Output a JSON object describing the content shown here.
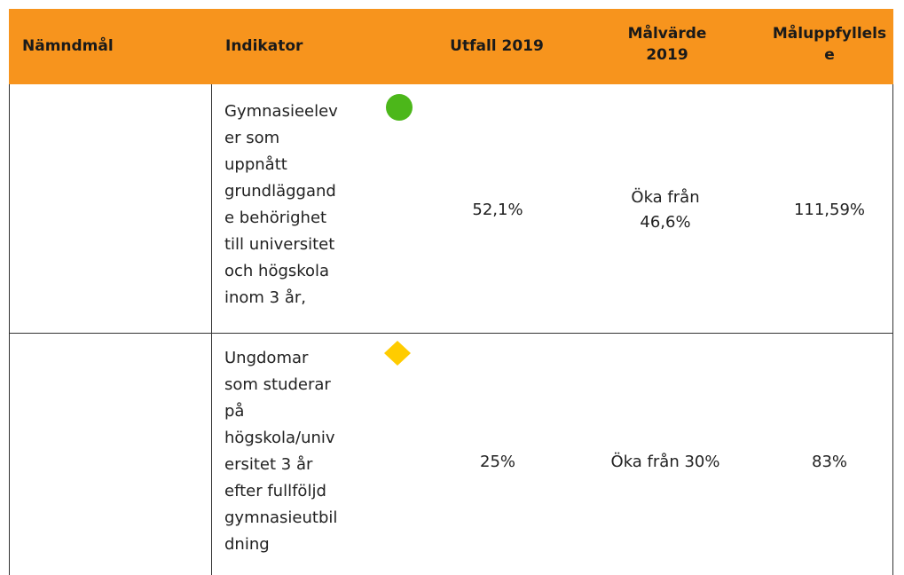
{
  "table": {
    "header": [
      "Nämndmål",
      "Indikator",
      "Utfall 2019",
      "Målvärde\n2019",
      "Måluppfyllels\ne"
    ],
    "rows": [
      [
        "",
        "Gymnasieelev\ner som\nuppnått\ngrundläggand\ne behörighet\ntill universitet\noch högskola\ninom 3 år,",
        "52,1%",
        "Öka från\n46,6%",
        "111,59%"
      ],
      [
        "",
        "Ungdomar\nsom studerar\npå\nhögskola/univ\nersitet 3 år\nefter fullföljd\ngymnasieutbil\ndning",
        "25%",
        "Öka från 30%",
        "83%"
      ]
    ]
  }
}
